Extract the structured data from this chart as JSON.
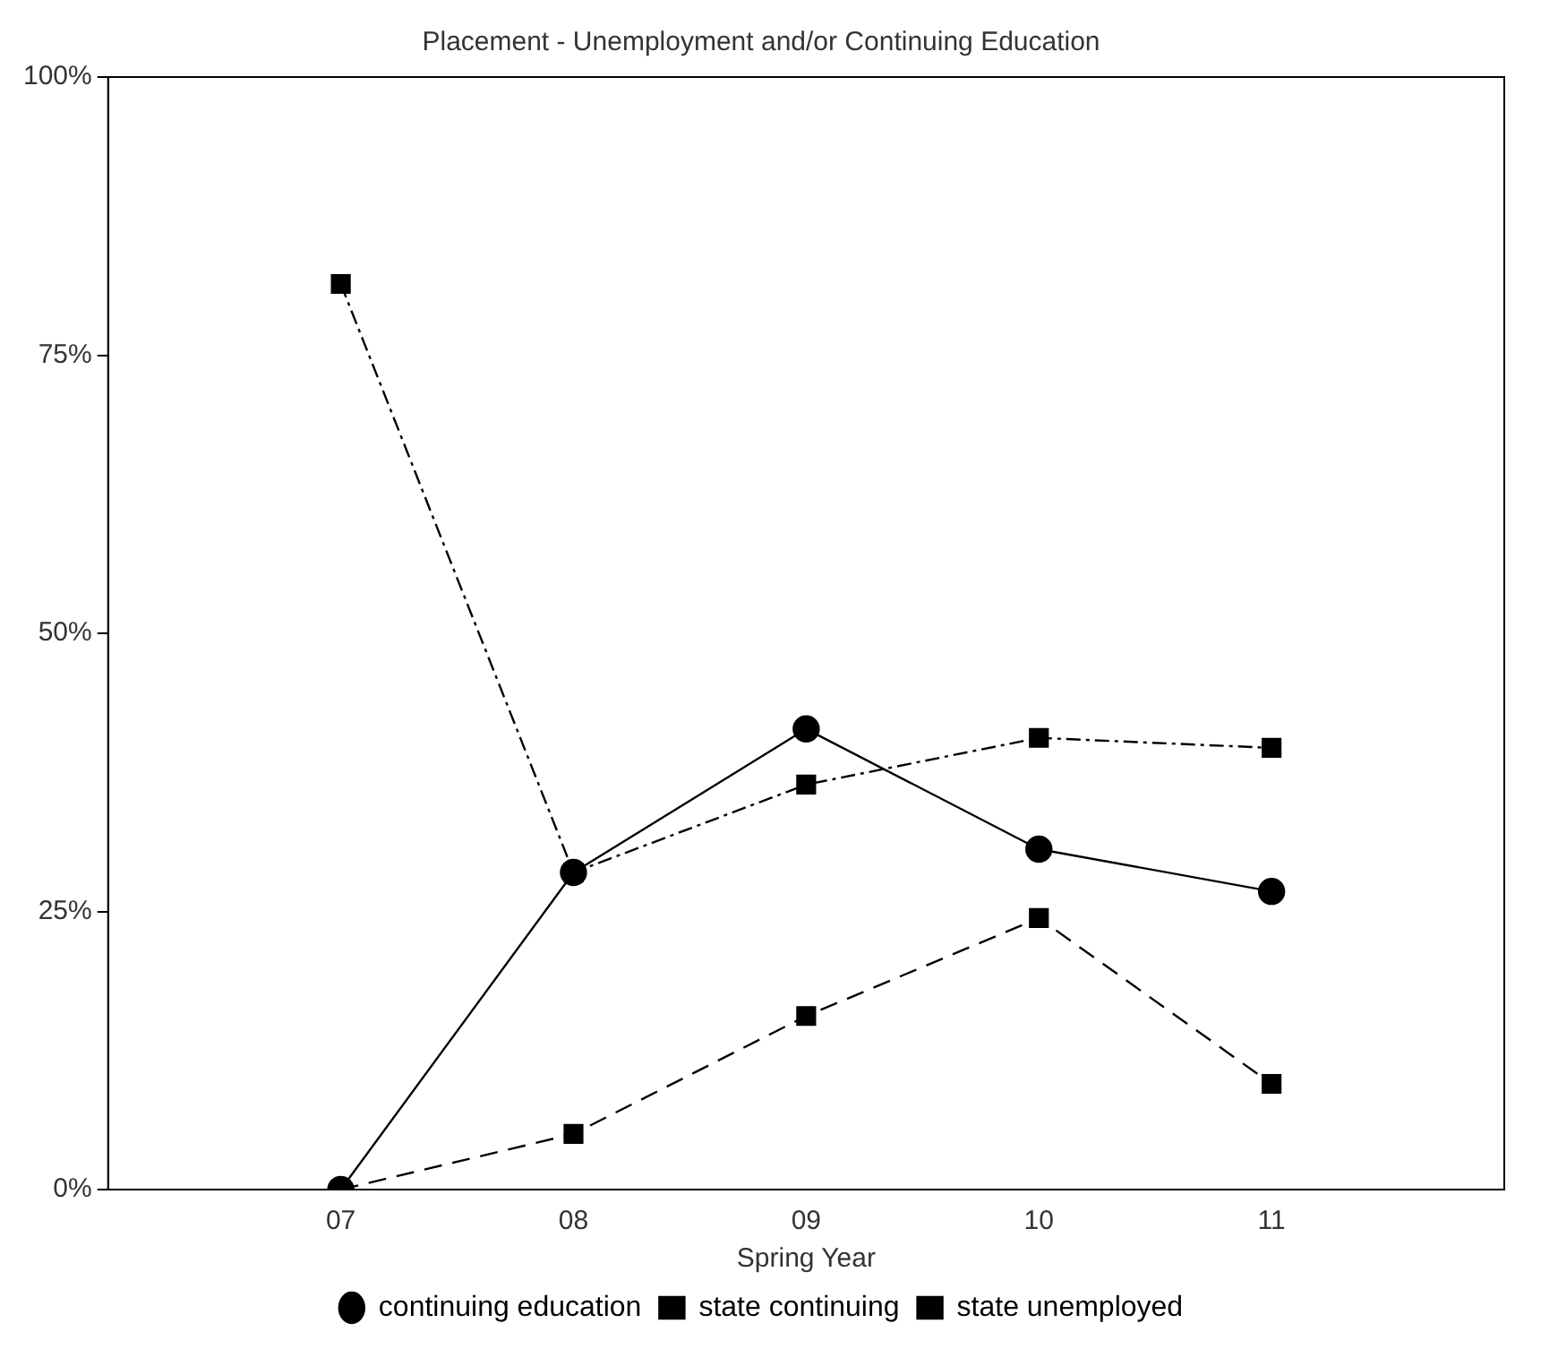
{
  "chart_data": {
    "type": "line",
    "title": "Placement - Unemployment and/or Continuing Education",
    "xlabel": "Spring Year",
    "categories": [
      "07",
      "08",
      "09",
      "10",
      "11"
    ],
    "ylim": [
      0,
      100
    ],
    "yticks": [
      {
        "value": 0,
        "label": "0%"
      },
      {
        "value": 25,
        "label": "25%"
      },
      {
        "value": 50,
        "label": "50%"
      },
      {
        "value": 75,
        "label": "75%"
      },
      {
        "value": 100,
        "label": "100%"
      }
    ],
    "grid": false,
    "legend": "bottom",
    "series": [
      {
        "name": "continuing education",
        "color": "#000000",
        "marker": "circle",
        "line_style": "solid",
        "values": [
          0,
          28.5,
          41.4,
          30.6,
          26.8
        ]
      },
      {
        "name": "state continuing",
        "color": "#000000",
        "marker": "square",
        "line_style": "dashdot",
        "values": [
          81.4,
          28.5,
          36.4,
          40.6,
          39.7
        ]
      },
      {
        "name": "state unemployed",
        "color": "#000000",
        "marker": "square",
        "line_style": "dashed",
        "values": [
          0,
          5,
          15.6,
          24.4,
          9.5
        ]
      }
    ]
  }
}
